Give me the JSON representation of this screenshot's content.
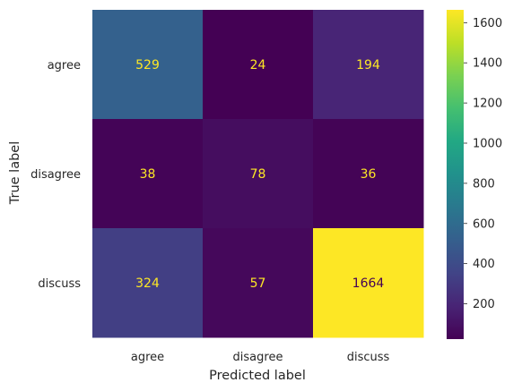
{
  "chart_data": {
    "type": "heatmap",
    "title": "",
    "xlabel": "Predicted label",
    "ylabel": "True label",
    "x_categories": [
      "agree",
      "disagree",
      "discuss"
    ],
    "y_categories": [
      "agree",
      "disagree",
      "discuss"
    ],
    "values": [
      [
        529,
        24,
        194
      ],
      [
        38,
        78,
        36
      ],
      [
        324,
        57,
        1664
      ]
    ],
    "colormap": "viridis",
    "color_range": [
      24,
      1664
    ],
    "colorbar_ticks": [
      200,
      400,
      600,
      800,
      1000,
      1200,
      1400,
      1600
    ],
    "text_color_on_dark": "#fde725",
    "text_color_on_light": "#440154",
    "grid": false
  }
}
